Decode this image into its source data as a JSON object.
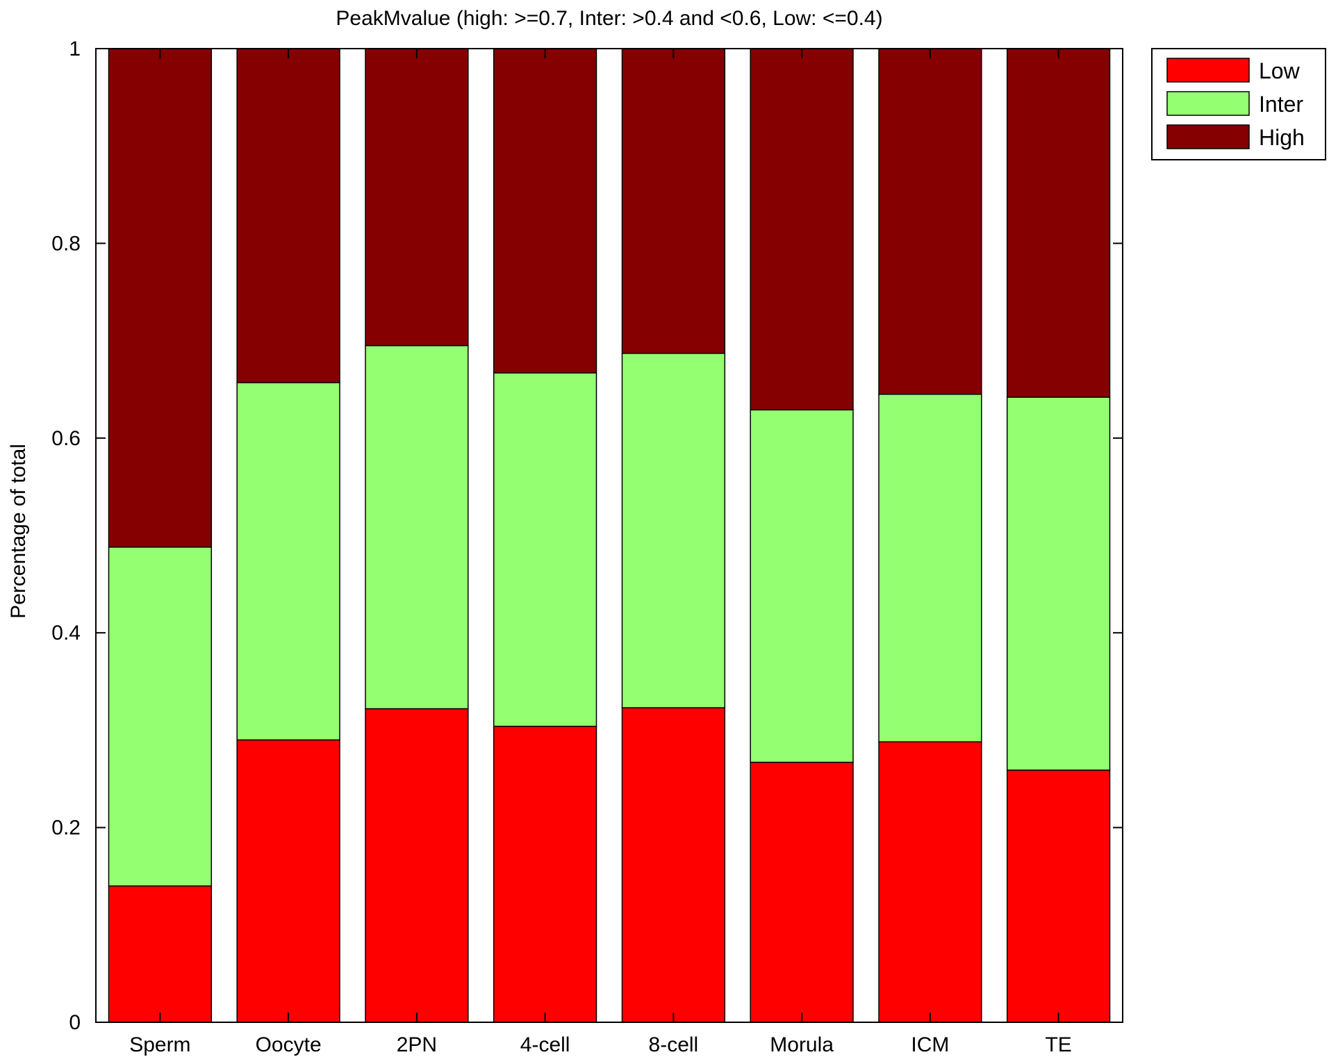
{
  "chart_data": {
    "type": "bar",
    "stacked": true,
    "title": "PeakMvalue (high: >=0.7, Inter: >0.4 and <0.6, Low: <=0.4)",
    "xlabel": "",
    "ylabel": "Percentage of total",
    "ylim": [
      0,
      1
    ],
    "yticks": [
      "0",
      "0.2",
      "0.4",
      "0.6",
      "0.8",
      "1"
    ],
    "grid": false,
    "legend_position": "outside-top-right",
    "categories": [
      "Sperm",
      "Oocyte",
      "2PN",
      "4-cell",
      "8-cell",
      "Morula",
      "ICM",
      "TE"
    ],
    "series": [
      {
        "name": "Low",
        "color": "#ff0000",
        "values": [
          0.14,
          0.29,
          0.322,
          0.304,
          0.323,
          0.267,
          0.288,
          0.259
        ]
      },
      {
        "name": "Inter",
        "color": "#94ff70",
        "values": [
          0.348,
          0.367,
          0.373,
          0.363,
          0.364,
          0.362,
          0.357,
          0.383
        ]
      },
      {
        "name": "High",
        "color": "#850000",
        "values": [
          0.512,
          0.343,
          0.305,
          0.333,
          0.313,
          0.371,
          0.355,
          0.358
        ]
      }
    ]
  }
}
